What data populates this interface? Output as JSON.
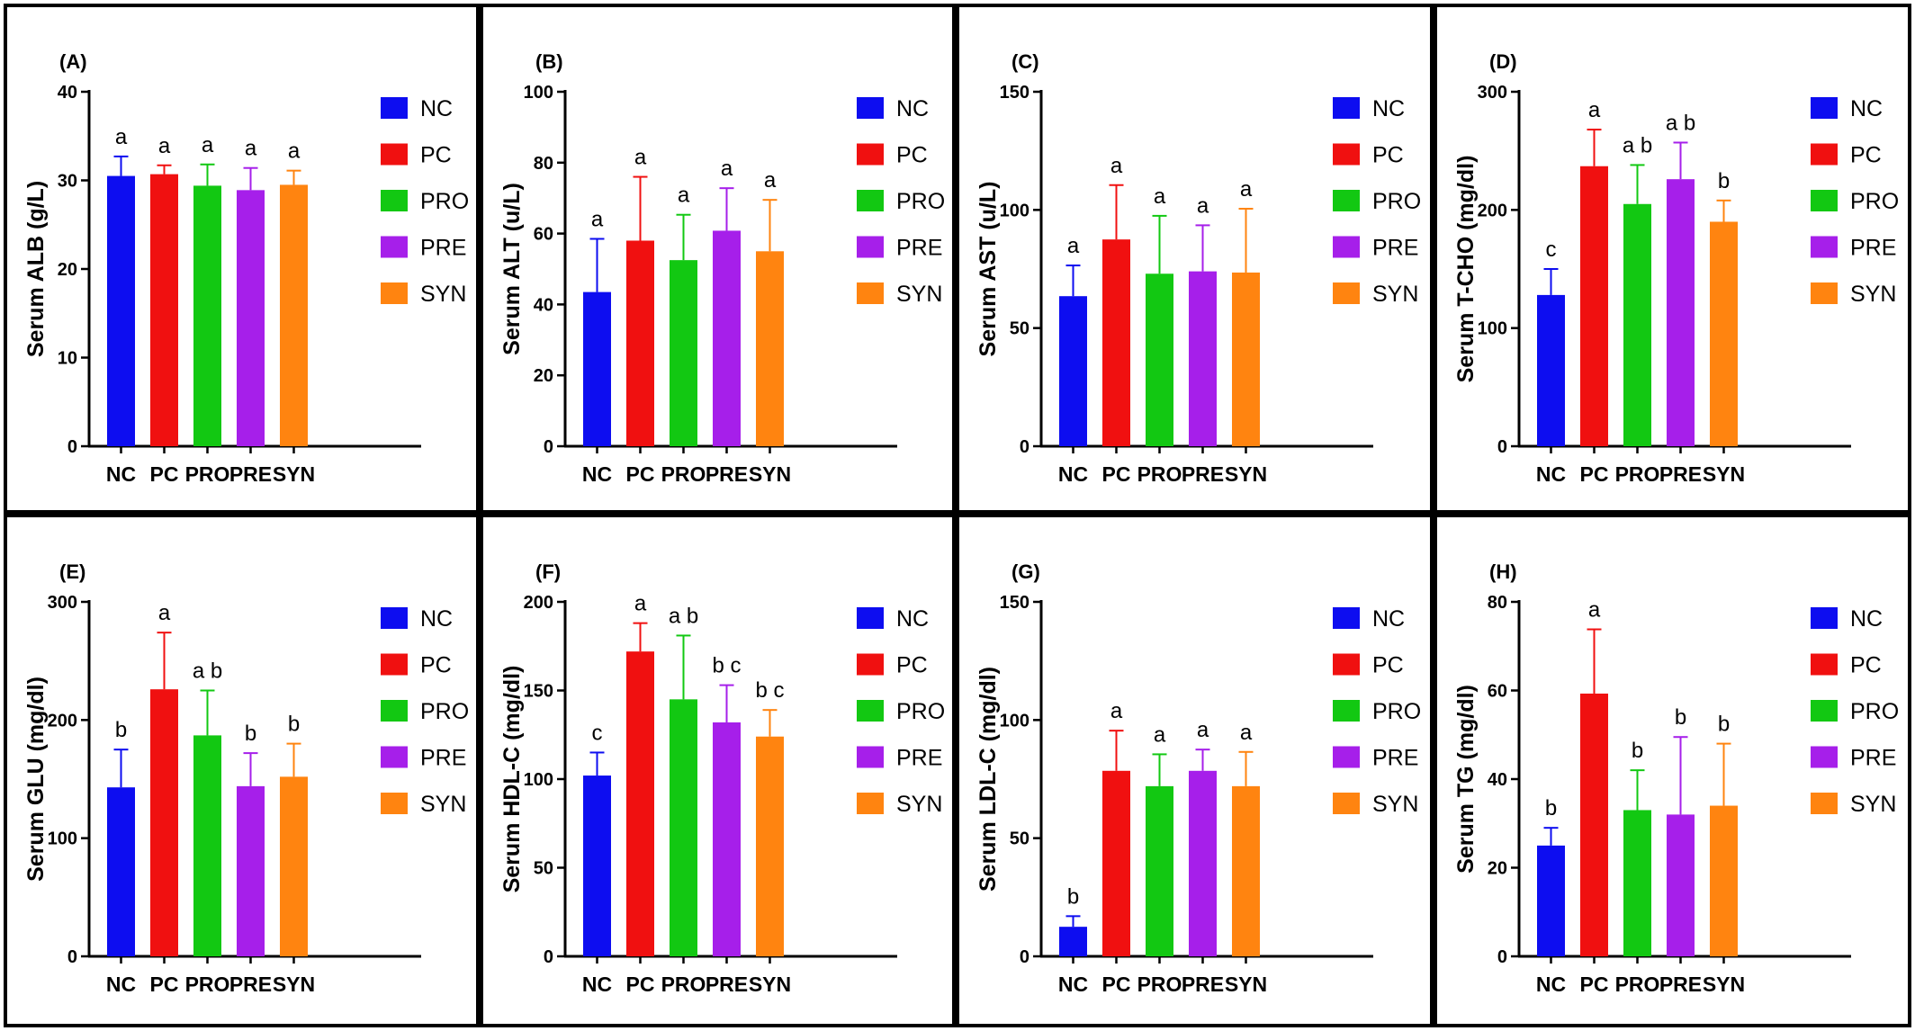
{
  "figure": {
    "colors": {
      "NC": "#0d0df0",
      "PC": "#f01010",
      "PRO": "#12c812",
      "PRE": "#a61fea",
      "SYN": "#ff8410"
    },
    "legend": [
      "NC",
      "PC",
      "PRO",
      "PRE",
      "SYN"
    ]
  },
  "chart_data": [
    {
      "type": "bar",
      "panel": "(A)",
      "ylabel": "Serum ALB (g/L)",
      "categories": [
        "NC",
        "PC",
        "PRO",
        "PRE",
        "SYN"
      ],
      "values": [
        30.5,
        30.7,
        29.4,
        28.9,
        29.5
      ],
      "errors": [
        2.2,
        1.0,
        2.4,
        2.5,
        1.6
      ],
      "significance": [
        "a",
        "a",
        "a",
        "a",
        "a"
      ],
      "ylim": [
        0,
        40
      ],
      "yticks": [
        0,
        10,
        20,
        30,
        40
      ]
    },
    {
      "type": "bar",
      "panel": "(B)",
      "ylabel": "Serum ALT (u/L)",
      "categories": [
        "NC",
        "PC",
        "PRO",
        "PRE",
        "SYN"
      ],
      "values": [
        43.5,
        58,
        52.5,
        60.8,
        55
      ],
      "errors": [
        15,
        18,
        12.8,
        12,
        14.5
      ],
      "significance": [
        "a",
        "a",
        "a",
        "a",
        "a"
      ],
      "ylim": [
        0,
        100
      ],
      "yticks": [
        0,
        20,
        40,
        60,
        80,
        100
      ]
    },
    {
      "type": "bar",
      "panel": "(C)",
      "ylabel": "Serum AST (u/L)",
      "categories": [
        "NC",
        "PC",
        "PRO",
        "PRE",
        "SYN"
      ],
      "values": [
        63.5,
        87.5,
        73,
        74,
        73.5
      ],
      "errors": [
        13,
        23,
        24.5,
        19.5,
        27
      ],
      "significance": [
        "a",
        "a",
        "a",
        "a",
        "a"
      ],
      "ylim": [
        0,
        150
      ],
      "yticks": [
        0,
        50,
        100,
        150
      ]
    },
    {
      "type": "bar",
      "panel": "(D)",
      "ylabel": "Serum T-CHO (mg/dl)",
      "categories": [
        "NC",
        "PC",
        "PRO",
        "PRE",
        "SYN"
      ],
      "values": [
        128,
        237,
        205,
        226,
        190
      ],
      "errors": [
        22,
        31,
        33,
        31,
        18
      ],
      "significance": [
        "c",
        "a",
        "a b",
        "a b",
        "b"
      ],
      "ylim": [
        0,
        300
      ],
      "yticks": [
        0,
        100,
        200,
        300
      ]
    },
    {
      "type": "bar",
      "panel": "(E)",
      "ylabel": "Serum GLU (mg/dl)",
      "categories": [
        "NC",
        "PC",
        "PRO",
        "PRE",
        "SYN"
      ],
      "values": [
        143,
        226,
        187,
        144,
        152
      ],
      "errors": [
        32,
        48,
        38,
        28,
        28
      ],
      "significance": [
        "b",
        "a",
        "a b",
        "b",
        "b"
      ],
      "ylim": [
        0,
        300
      ],
      "yticks": [
        0,
        100,
        200,
        300
      ]
    },
    {
      "type": "bar",
      "panel": "(F)",
      "ylabel": "Serum HDL-C (mg/dl)",
      "categories": [
        "NC",
        "PC",
        "PRO",
        "PRE",
        "SYN"
      ],
      "values": [
        102,
        172,
        145,
        132,
        124
      ],
      "errors": [
        13,
        16,
        36,
        21,
        15
      ],
      "significance": [
        "c",
        "a",
        "a b",
        "b c",
        "b c"
      ],
      "ylim": [
        0,
        200
      ],
      "yticks": [
        0,
        50,
        100,
        150,
        200
      ]
    },
    {
      "type": "bar",
      "panel": "(G)",
      "ylabel": "Serum LDL-C (mg/dl)",
      "categories": [
        "NC",
        "PC",
        "PRO",
        "PRE",
        "SYN"
      ],
      "values": [
        12.5,
        78.5,
        72,
        78.5,
        72
      ],
      "errors": [
        4.5,
        17,
        13.5,
        9,
        14.5
      ],
      "significance": [
        "b",
        "a",
        "a",
        "a",
        "a"
      ],
      "ylim": [
        0,
        150
      ],
      "yticks": [
        0,
        50,
        100,
        150
      ]
    },
    {
      "type": "bar",
      "panel": "(H)",
      "ylabel": "Serum TG (mg/dl)",
      "categories": [
        "NC",
        "PC",
        "PRO",
        "PRE",
        "SYN"
      ],
      "values": [
        25,
        59.3,
        33,
        32,
        34
      ],
      "errors": [
        4,
        14.5,
        9,
        17.5,
        14
      ],
      "significance": [
        "b",
        "a",
        "b",
        "b",
        "b"
      ],
      "ylim": [
        0,
        80
      ],
      "yticks": [
        0,
        20,
        40,
        60,
        80
      ]
    }
  ]
}
